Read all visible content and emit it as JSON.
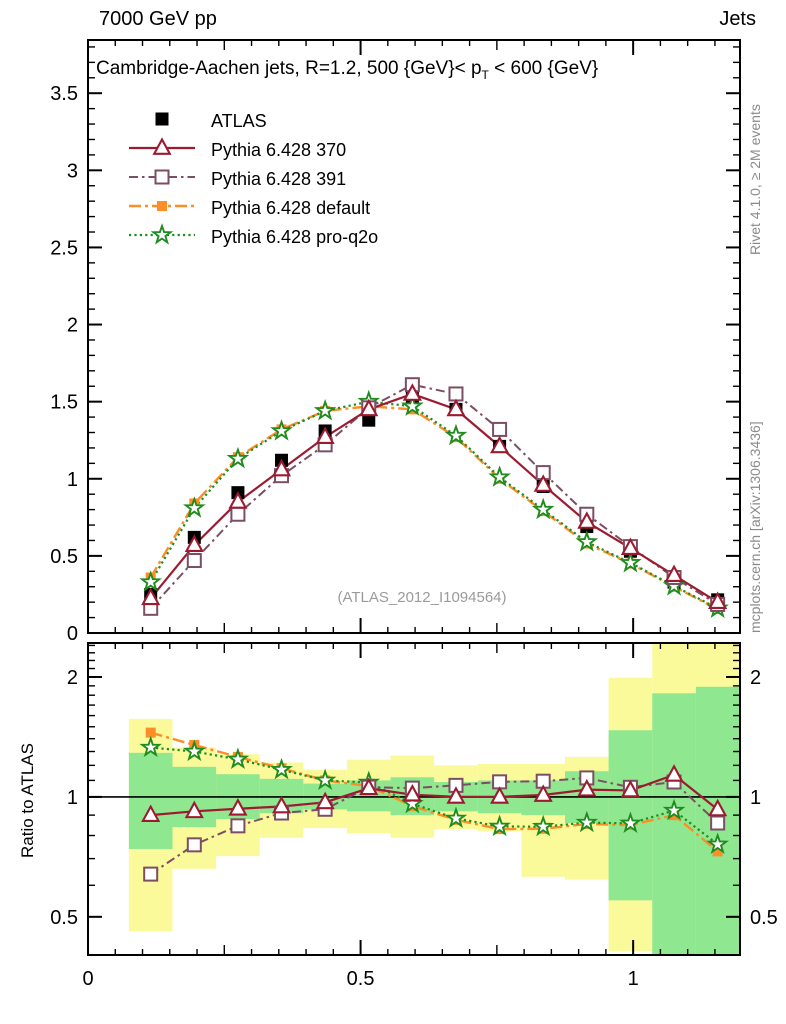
{
  "header": {
    "left": "7000 GeV pp",
    "right": "Jets"
  },
  "plot_title": {
    "pre": "Cambridge-Aachen jets, R=1.2,  500 {GeV}< p",
    "sub": "T",
    "post": " < 600 {GeV}"
  },
  "watermark": "(ATLAS_2012_I1094564)",
  "side_notes": {
    "top_right": "Rivet 4.1.0, ≥ 2M events",
    "bottom_right": "mcplots.cern.ch [arXiv:1306.3436]"
  },
  "ratio_panel_label": "Ratio to ATLAS",
  "chart_data": {
    "type": "line",
    "x": [
      0.115,
      0.195,
      0.275,
      0.355,
      0.435,
      0.515,
      0.595,
      0.675,
      0.755,
      0.835,
      0.915,
      0.995,
      1.075,
      1.155
    ],
    "xlim": [
      0,
      1.196
    ],
    "xtick_values": [
      0,
      0.5,
      1
    ],
    "xtick_labels": [
      "0",
      "0.5",
      "1"
    ],
    "main": {
      "ylim": [
        0,
        3.845
      ],
      "ytick_values": [
        0,
        0.5,
        1,
        1.5,
        2,
        2.5,
        3,
        3.5
      ],
      "ytick_labels": [
        "0",
        "0.5",
        "1",
        "1.5",
        "2",
        "2.5",
        "3",
        "3.5"
      ]
    },
    "ratio": {
      "yscale": "log",
      "ylim": [
        0.401,
        2.434
      ],
      "ytick_values": [
        0.5,
        1,
        2
      ],
      "ytick_labels": [
        "0.5",
        "1",
        "2"
      ],
      "ref_value": 1,
      "bands": {
        "yellow_color": "#fafa9b",
        "green_color": "#8fe78f",
        "bin_edges": [
          0.075,
          0.155,
          0.235,
          0.315,
          0.395,
          0.475,
          0.555,
          0.635,
          0.715,
          0.795,
          0.875,
          0.955,
          1.035,
          1.115,
          1.195
        ],
        "yellow": [
          [
            0.46,
            1.57
          ],
          [
            0.66,
            1.33
          ],
          [
            0.71,
            1.28
          ],
          [
            0.79,
            1.22
          ],
          [
            0.835,
            1.17
          ],
          [
            0.81,
            1.24
          ],
          [
            0.79,
            1.27
          ],
          [
            0.83,
            1.2
          ],
          [
            0.82,
            1.21
          ],
          [
            0.63,
            1.21
          ],
          [
            0.62,
            1.26
          ],
          [
            0.41,
            1.99
          ],
          [
            0.4,
            2.43
          ],
          [
            0.4,
            2.43
          ]
        ],
        "green": [
          [
            0.74,
            1.29
          ],
          [
            0.84,
            1.19
          ],
          [
            0.88,
            1.14
          ],
          [
            0.91,
            1.11
          ],
          [
            0.93,
            1.08
          ],
          [
            0.92,
            1.1
          ],
          [
            0.9,
            1.12
          ],
          [
            0.92,
            1.09
          ],
          [
            0.91,
            1.1
          ],
          [
            0.9,
            1.1
          ],
          [
            0.86,
            1.16
          ],
          [
            0.55,
            1.47
          ],
          [
            0.4,
            1.82
          ],
          [
            0.4,
            1.89
          ]
        ]
      }
    },
    "series": [
      {
        "name": "ATLAS",
        "color": "#000000",
        "marker": "filled-square",
        "line": "none",
        "values": [
          0.25,
          0.62,
          0.91,
          1.12,
          1.31,
          1.38,
          1.53,
          1.45,
          1.21,
          0.95,
          0.69,
          0.53,
          0.33,
          0.215
        ],
        "ratio": null
      },
      {
        "name": "Pythia 6.428 370",
        "color": "#9c1b30",
        "marker": "open-triangle",
        "line": "solid",
        "values": [
          0.225,
          0.57,
          0.85,
          1.06,
          1.27,
          1.45,
          1.55,
          1.45,
          1.21,
          0.96,
          0.72,
          0.55,
          0.375,
          0.2
        ],
        "ratio": [
          0.9,
          0.92,
          0.934,
          0.946,
          0.969,
          1.051,
          1.013,
          1.0,
          1.0,
          1.011,
          1.043,
          1.038,
          1.136,
          0.93
        ]
      },
      {
        "name": "Pythia 6.428 391",
        "color": "#7b4e63",
        "marker": "open-square",
        "line": "dashdot",
        "values": [
          0.16,
          0.47,
          0.77,
          1.02,
          1.22,
          1.46,
          1.61,
          1.55,
          1.32,
          1.04,
          0.77,
          0.56,
          0.36,
          0.185
        ],
        "ratio": [
          0.64,
          0.758,
          0.846,
          0.911,
          0.931,
          1.058,
          1.052,
          1.069,
          1.091,
          1.095,
          1.116,
          1.057,
          1.09,
          0.86
        ]
      },
      {
        "name": "Pythia 6.428 default",
        "color": "#fc8d27",
        "marker": "filled-square-small",
        "line": "dashdot2",
        "values": [
          0.36,
          0.84,
          1.14,
          1.32,
          1.44,
          1.47,
          1.45,
          1.27,
          1.0,
          0.79,
          0.58,
          0.45,
          0.3,
          0.155
        ],
        "ratio": [
          1.45,
          1.35,
          1.26,
          1.18,
          1.1,
          1.065,
          0.948,
          0.876,
          0.83,
          0.832,
          0.855,
          0.85,
          0.9,
          0.73
        ]
      },
      {
        "name": "Pythia 6.428 pro-q2o",
        "color": "#1e8c1e",
        "marker": "open-star",
        "line": "dotted",
        "values": [
          0.33,
          0.81,
          1.13,
          1.31,
          1.44,
          1.5,
          1.47,
          1.28,
          1.01,
          0.8,
          0.59,
          0.455,
          0.305,
          0.16
        ],
        "ratio": [
          1.33,
          1.3,
          1.242,
          1.17,
          1.1,
          1.087,
          0.961,
          0.883,
          0.843,
          0.842,
          0.862,
          0.858,
          0.924,
          0.76
        ]
      }
    ]
  }
}
